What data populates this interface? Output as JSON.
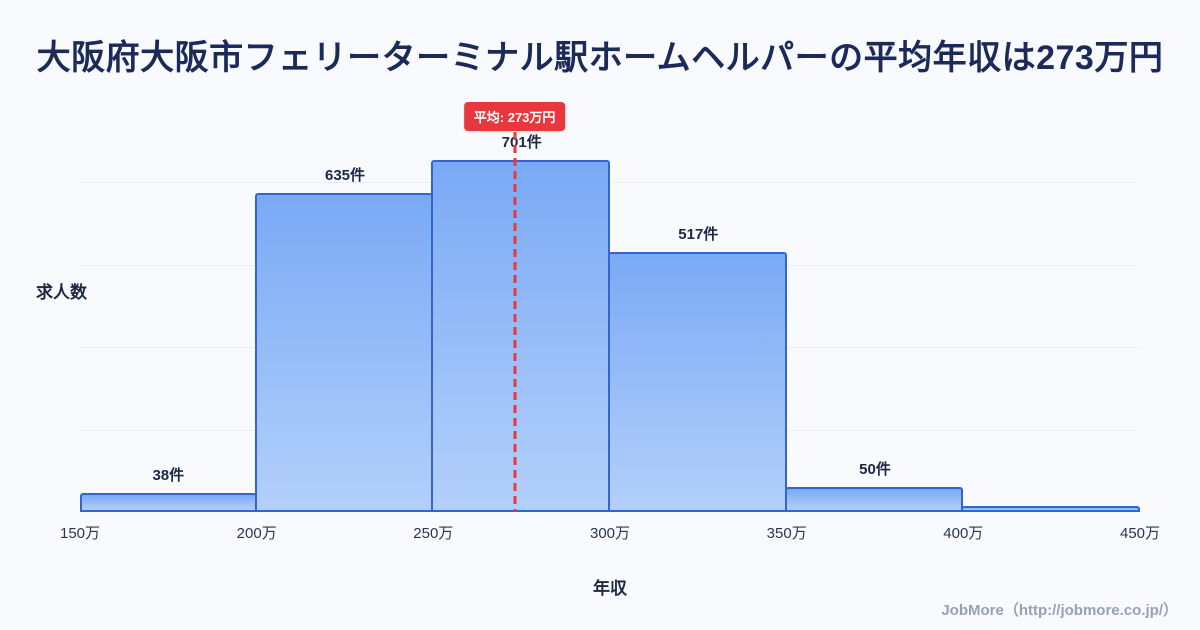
{
  "title": "大阪府大阪市フェリーターミナル駅ホームヘルパーの平均年収は273万円",
  "footer": "JobMore（http://jobmore.co.jp/）",
  "chart_data": {
    "type": "bar",
    "title": "大阪府大阪市フェリーターミナル駅ホームヘルパーの平均年収は273万円",
    "xlabel": "年収",
    "ylabel": "求人数",
    "x_range": [
      150,
      450
    ],
    "x_ticks": [
      "150万",
      "200万",
      "250万",
      "300万",
      "350万",
      "400万",
      "450万"
    ],
    "bars": [
      {
        "range": "150万-200万",
        "count": 38,
        "label": "38件"
      },
      {
        "range": "200万-250万",
        "count": 635,
        "label": "635件"
      },
      {
        "range": "250万-300万",
        "count": 701,
        "label": "701件"
      },
      {
        "range": "300万-350万",
        "count": 517,
        "label": "517件"
      },
      {
        "range": "350万-400万",
        "count": 50,
        "label": "50件"
      },
      {
        "range": "400万-450万",
        "count": 12,
        "label": ""
      }
    ],
    "average": {
      "value": 273,
      "label": "平均: 273万円"
    },
    "legend": null,
    "grid": true,
    "colors": {
      "bar_gradient_top": "#7aa9f5",
      "bar_gradient_bottom": "#b3d0fb",
      "bar_border": "#3366cc",
      "average_line": "#e8383d",
      "badge_background": "#e8383d",
      "badge_text": "#ffffff",
      "title_text": "#1c2a5a",
      "background": "#f8fafd"
    }
  }
}
